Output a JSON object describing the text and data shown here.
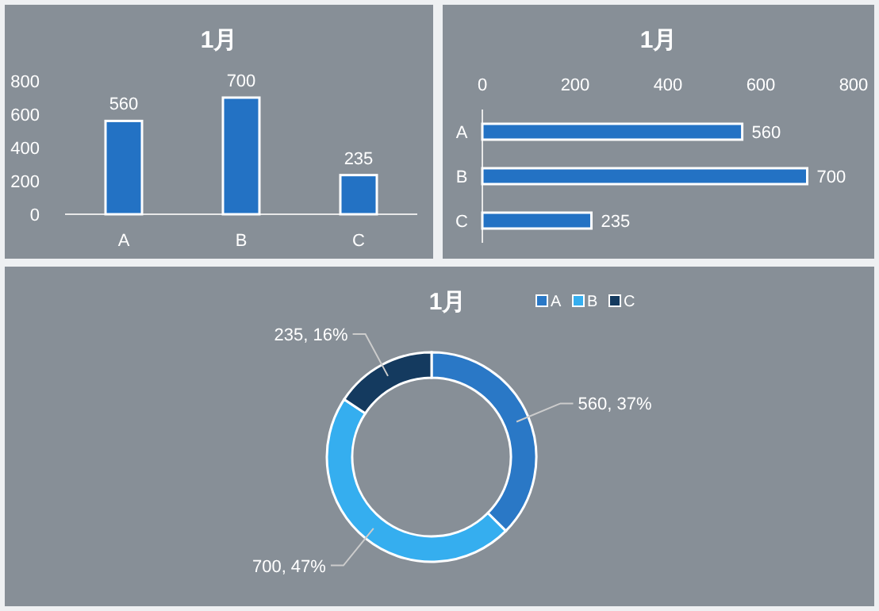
{
  "chart_data": [
    {
      "type": "bar",
      "title": "1月",
      "categories": [
        "A",
        "B",
        "C"
      ],
      "values": [
        560,
        700,
        235
      ],
      "color": "#2372c4",
      "ylim": [
        0,
        800
      ],
      "yticks": [
        0,
        200,
        400,
        600,
        800
      ],
      "data_labels": true
    },
    {
      "type": "bar",
      "orientation": "horizontal",
      "title": "1月",
      "categories": [
        "A",
        "B",
        "C"
      ],
      "values": [
        560,
        700,
        235
      ],
      "color": "#2372c4",
      "xlim": [
        0,
        800
      ],
      "xticks": [
        0,
        200,
        400,
        600,
        800
      ],
      "data_labels": true
    },
    {
      "type": "donut",
      "title": "1月",
      "categories": [
        "A",
        "B",
        "C"
      ],
      "values": [
        560,
        700,
        235
      ],
      "colors": [
        "#2a78c6",
        "#35aeef",
        "#143a5f"
      ],
      "value_labels": [
        "560, 37%",
        "700, 47%",
        "235, 16%"
      ],
      "legend": "top right"
    }
  ]
}
